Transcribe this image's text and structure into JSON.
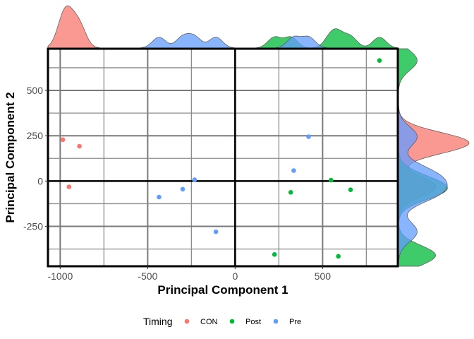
{
  "chart_data": {
    "type": "scatter",
    "title": "",
    "xlabel": "Principal Component 1",
    "ylabel": "Principal Component 2",
    "xlim": [
      -1070,
      930
    ],
    "ylim": [
      -470,
      730
    ],
    "x_ticks": [
      -1000,
      -500,
      0,
      500
    ],
    "x_tick_labels": [
      "-1000",
      "-500",
      "0",
      "500"
    ],
    "y_ticks": [
      -250,
      0,
      250,
      500
    ],
    "y_tick_labels": [
      "-250",
      "0",
      "250",
      "500"
    ],
    "grid": true,
    "marginal_densities": true,
    "legend": {
      "title": "Timing",
      "position": "bottom"
    },
    "series": [
      {
        "name": "CON",
        "color": "#F8766D",
        "points": [
          {
            "x": -985,
            "y": 228
          },
          {
            "x": -890,
            "y": 192
          },
          {
            "x": -950,
            "y": -32
          }
        ]
      },
      {
        "name": "Post",
        "color": "#00BA38",
        "points": [
          {
            "x": 825,
            "y": 665
          },
          {
            "x": 548,
            "y": 5
          },
          {
            "x": 660,
            "y": -48
          },
          {
            "x": 318,
            "y": -62
          },
          {
            "x": 225,
            "y": -405
          },
          {
            "x": 590,
            "y": -415
          }
        ]
      },
      {
        "name": "Pre",
        "color": "#619CFF",
        "points": [
          {
            "x": 420,
            "y": 245
          },
          {
            "x": 335,
            "y": 58
          },
          {
            "x": -232,
            "y": 7
          },
          {
            "x": -300,
            "y": -45
          },
          {
            "x": -435,
            "y": -88
          },
          {
            "x": -110,
            "y": -280
          }
        ]
      }
    ]
  }
}
